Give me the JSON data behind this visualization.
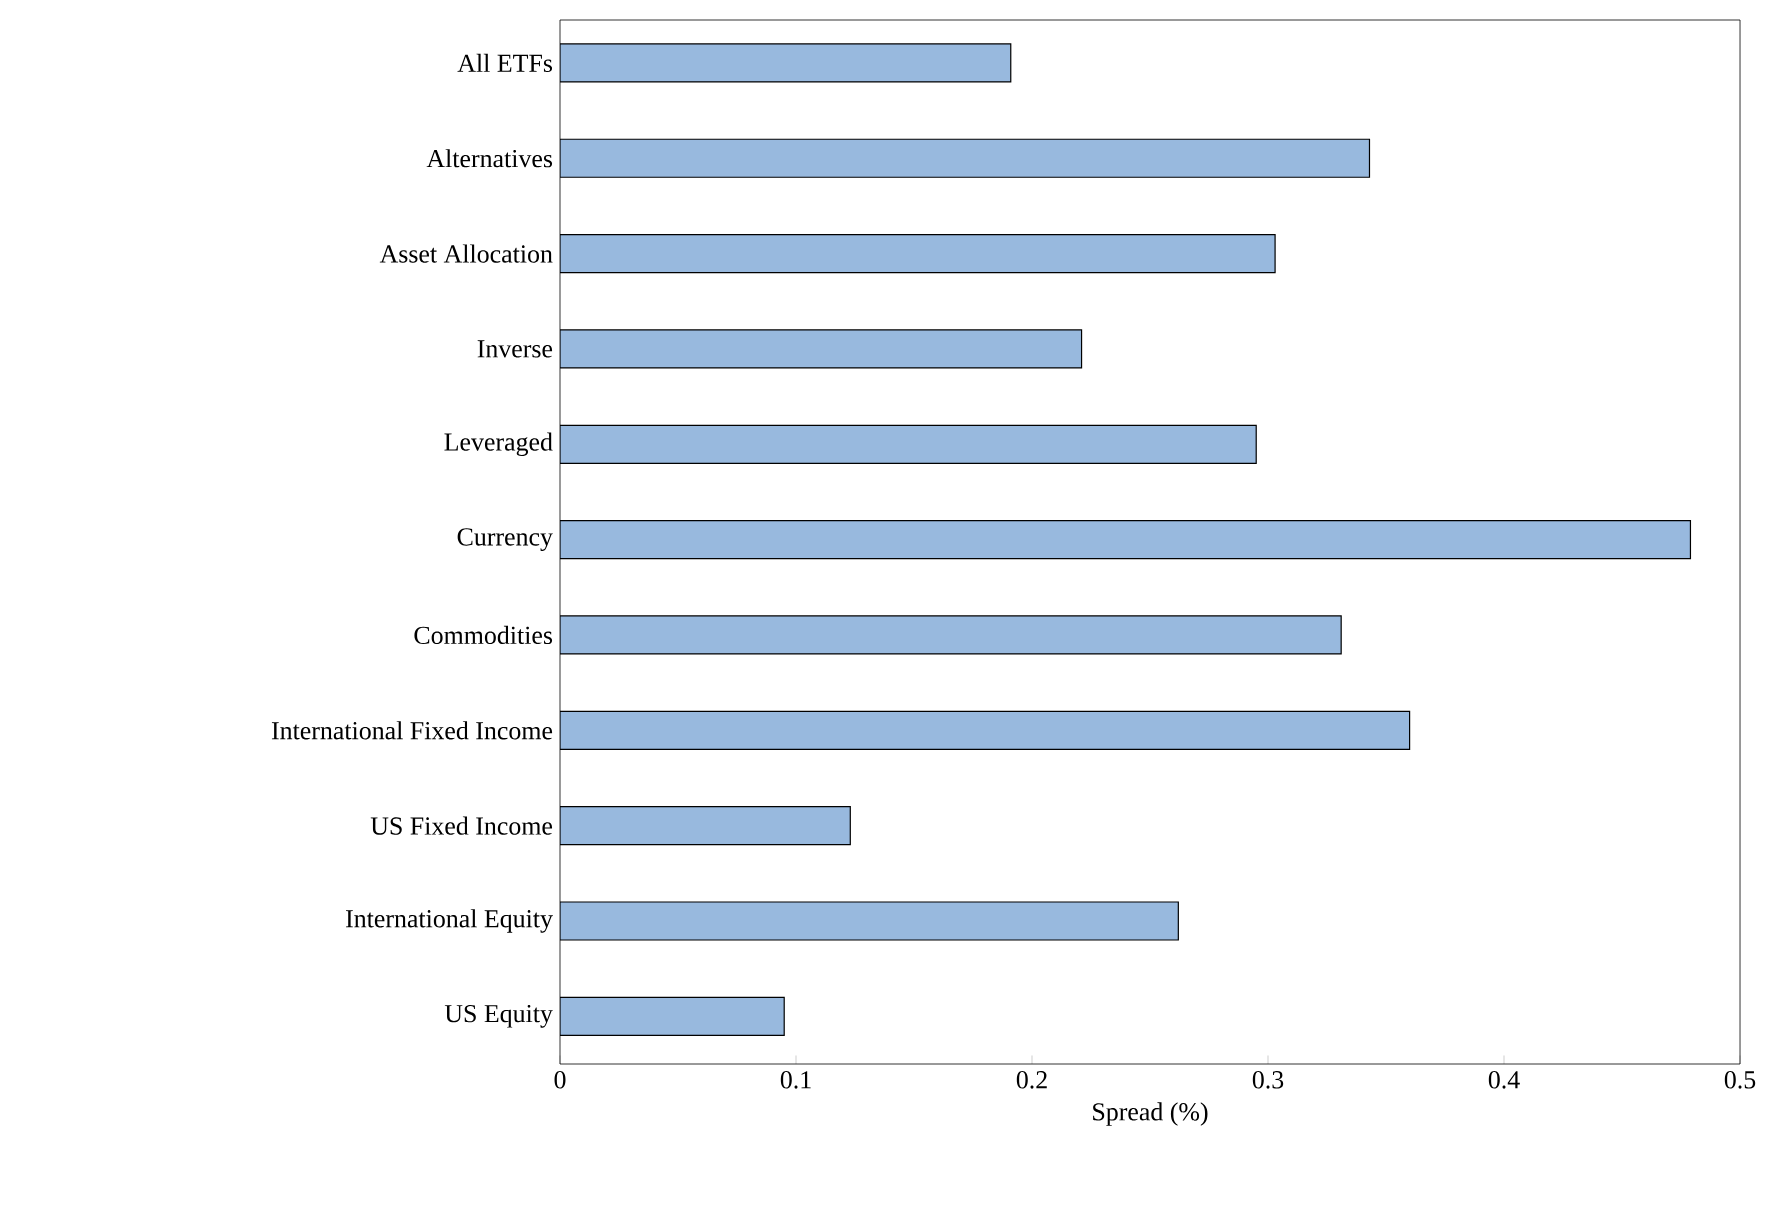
{
  "chart_data": {
    "type": "bar",
    "orientation": "horizontal",
    "xlabel": "Spread (%)",
    "categories": [
      "All ETFs",
      "Alternatives",
      "Asset Allocation",
      "Inverse",
      "Leveraged",
      "Currency",
      "Commodities",
      "International Fixed Income",
      "US Fixed Income",
      "International Equity",
      "US Equity"
    ],
    "values": [
      0.191,
      0.343,
      0.303,
      0.221,
      0.295,
      0.479,
      0.331,
      0.36,
      0.123,
      0.262,
      0.095
    ],
    "color": "#98b9de",
    "xlim": [
      0,
      0.5
    ],
    "xticks": [
      0,
      0.1,
      0.2,
      0.3,
      0.4,
      0.5
    ]
  }
}
